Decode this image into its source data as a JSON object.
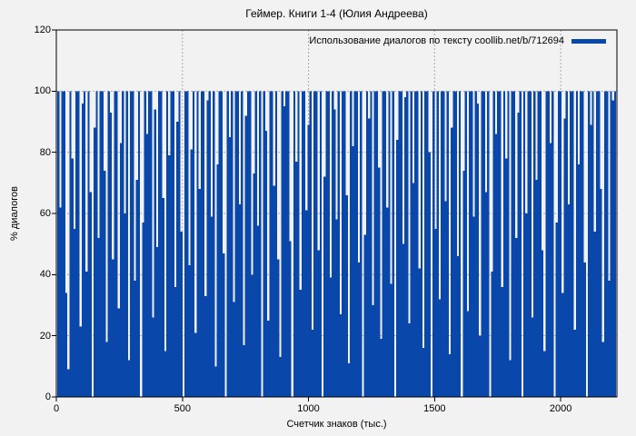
{
  "title": "Геймер. Книги 1-4 (Юлия Андреева)",
  "legend": {
    "label": "Использование диалогов по тексту coollib.net/b/712694"
  },
  "colors": {
    "background": "#f2f2f2",
    "bar": "#0a47ab",
    "grid": "#ababab",
    "frame": "#000000",
    "text": "#000000"
  },
  "chart_data": {
    "type": "bar",
    "title": "Геймер. Книги 1-4 (Юлия Андреева)",
    "xlabel": "Счетчик знаков (тыс.)",
    "ylabel": "% диалогов",
    "x_ticks": [
      0,
      500,
      1000,
      1500,
      2000
    ],
    "y_ticks": [
      0,
      20,
      40,
      60,
      80,
      100,
      120
    ],
    "xlim": [
      0,
      2223
    ],
    "ylim": [
      0,
      120
    ],
    "grid": "dotted",
    "legend_position": "top-right-inside",
    "x_start": 4,
    "x_step": 8,
    "values": [
      100,
      62,
      100,
      100,
      34,
      9,
      100,
      78,
      55,
      100,
      100,
      23,
      96,
      100,
      41,
      100,
      67,
      0,
      88,
      100,
      52,
      100,
      100,
      74,
      18,
      100,
      93,
      45,
      100,
      100,
      29,
      83,
      100,
      60,
      100,
      12,
      100,
      100,
      38,
      71,
      100,
      0,
      57,
      100,
      86,
      100,
      100,
      26,
      94,
      49,
      100,
      100,
      65,
      15,
      100,
      79,
      100,
      100,
      36,
      90,
      100,
      54,
      0,
      100,
      100,
      43,
      81,
      100,
      21,
      100,
      68,
      100,
      100,
      33,
      97,
      100,
      59,
      100,
      10,
      76,
      100,
      100,
      47,
      0,
      100,
      85,
      100,
      31,
      100,
      100,
      63,
      100,
      17,
      92,
      100,
      100,
      40,
      73,
      100,
      56,
      100,
      0,
      100,
      87,
      25,
      100,
      100,
      69,
      100,
      45,
      13,
      100,
      95,
      100,
      100,
      51,
      0,
      100,
      77,
      100,
      35,
      100,
      100,
      61,
      89,
      100,
      22,
      100,
      100,
      48,
      100,
      0,
      72,
      100,
      100,
      39,
      100,
      94,
      58,
      100,
      27,
      100,
      100,
      66,
      11,
      100,
      82,
      100,
      100,
      44,
      100,
      0,
      53,
      100,
      91,
      100,
      30,
      100,
      100,
      75,
      19,
      100,
      100,
      62,
      100,
      37,
      100,
      0,
      84,
      100,
      100,
      50,
      98,
      100,
      24,
      100,
      70,
      100,
      100,
      42,
      100,
      16,
      100,
      100,
      80,
      0,
      100,
      55,
      100,
      32,
      100,
      100,
      64,
      100,
      14,
      88,
      100,
      100,
      46,
      100,
      0,
      74,
      100,
      28,
      100,
      100,
      59,
      100,
      96,
      20,
      100,
      100,
      67,
      100,
      0,
      41,
      100,
      86,
      100,
      100,
      36,
      100,
      78,
      100,
      12,
      100,
      100,
      52,
      93,
      100,
      0,
      100,
      60,
      100,
      100,
      26,
      100,
      71,
      100,
      100,
      48,
      15,
      100,
      100,
      83,
      100,
      0,
      57,
      100,
      100,
      34,
      91,
      100,
      63,
      100,
      100,
      22,
      100,
      76,
      100,
      100,
      44,
      0,
      100,
      89,
      100,
      54,
      100,
      100,
      68,
      18,
      100,
      100,
      38,
      100,
      97,
      100
    ]
  }
}
